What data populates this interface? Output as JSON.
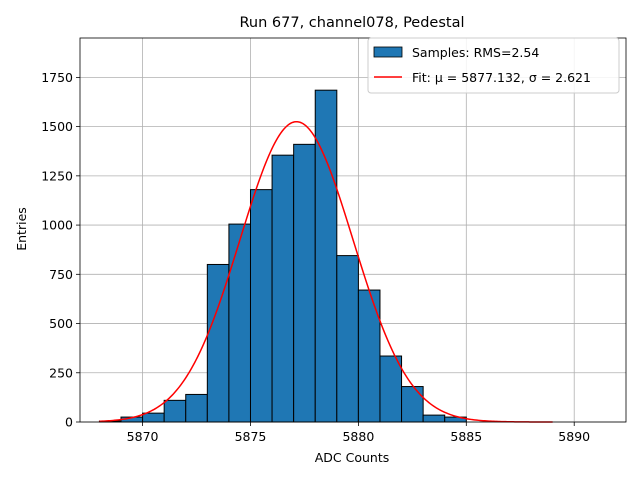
{
  "chart_data": {
    "type": "bar",
    "title": "Run 677, channel078, Pedestal",
    "xlabel": "ADC Counts",
    "ylabel": "Entries",
    "xlim": [
      5867.1,
      5892.4
    ],
    "ylim": [
      0,
      1950
    ],
    "x_ticks": [
      5870,
      5875,
      5880,
      5885,
      5890
    ],
    "y_ticks": [
      0,
      250,
      500,
      750,
      1000,
      1250,
      1500,
      1750
    ],
    "grid": true,
    "legend_position": "top-right",
    "histogram": {
      "name": "Samples: RMS=2.54",
      "color": "#1f77b4",
      "bin_edges": [
        5868,
        5869,
        5870,
        5871,
        5872,
        5873,
        5874,
        5875,
        5876,
        5877,
        5878,
        5879,
        5880,
        5881,
        5882,
        5883,
        5884,
        5885,
        5886,
        5887,
        5888,
        5889
      ],
      "counts": [
        5,
        25,
        45,
        110,
        140,
        800,
        1005,
        1180,
        1355,
        1410,
        1685,
        845,
        670,
        335,
        180,
        35,
        25,
        0,
        0,
        0,
        0
      ]
    },
    "fit": {
      "name_prefix": "Fit: ",
      "mu_label": "μ = 5877.132",
      "sigma_label": "σ = 2.621",
      "mu": 5877.132,
      "sigma": 2.621,
      "amplitude": 1525,
      "x_range": [
        5868,
        5889
      ],
      "color": "#ff0000"
    }
  }
}
